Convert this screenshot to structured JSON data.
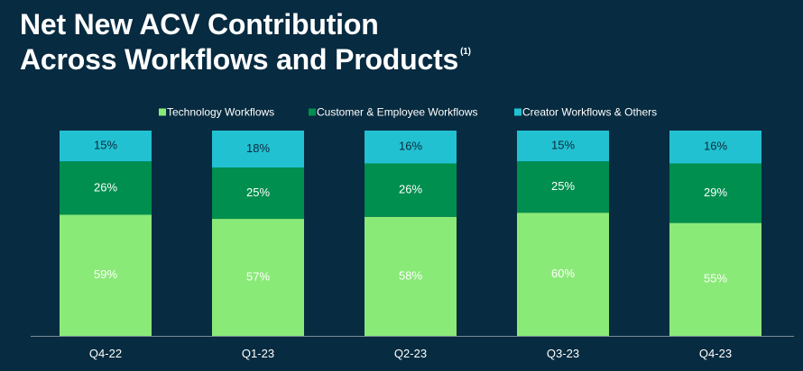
{
  "title": {
    "line1": "Net New ACV Contribution",
    "line2": "Across Workflows and Products",
    "footnote": "(1)"
  },
  "colors": {
    "background": "#072B40",
    "technology": "#8AEA78",
    "customer_employee": "#008F4E",
    "creator": "#22C1D2",
    "axis": "#7A8C96"
  },
  "chart_data": {
    "type": "bar",
    "stacked": true,
    "percent": true,
    "categories": [
      "Q4-22",
      "Q1-23",
      "Q2-23",
      "Q3-23",
      "Q4-23"
    ],
    "series": [
      {
        "name": "Technology Workflows",
        "color": "#8AEA78",
        "values": [
          59,
          57,
          58,
          60,
          55
        ],
        "labels": [
          "59%",
          "57%",
          "58%",
          "60%",
          "55%"
        ]
      },
      {
        "name": "Customer & Employee Workflows",
        "color": "#008F4E",
        "values": [
          26,
          25,
          26,
          25,
          29
        ],
        "labels": [
          "26%",
          "25%",
          "26%",
          "25%",
          "29%"
        ]
      },
      {
        "name": "Creator Workflows & Others",
        "color": "#22C1D2",
        "values": [
          15,
          18,
          16,
          15,
          16
        ],
        "labels": [
          "15%",
          "18%",
          "16%",
          "15%",
          "16%"
        ]
      }
    ],
    "ylim": [
      0,
      100
    ],
    "legend_position": "top",
    "grid": false
  }
}
